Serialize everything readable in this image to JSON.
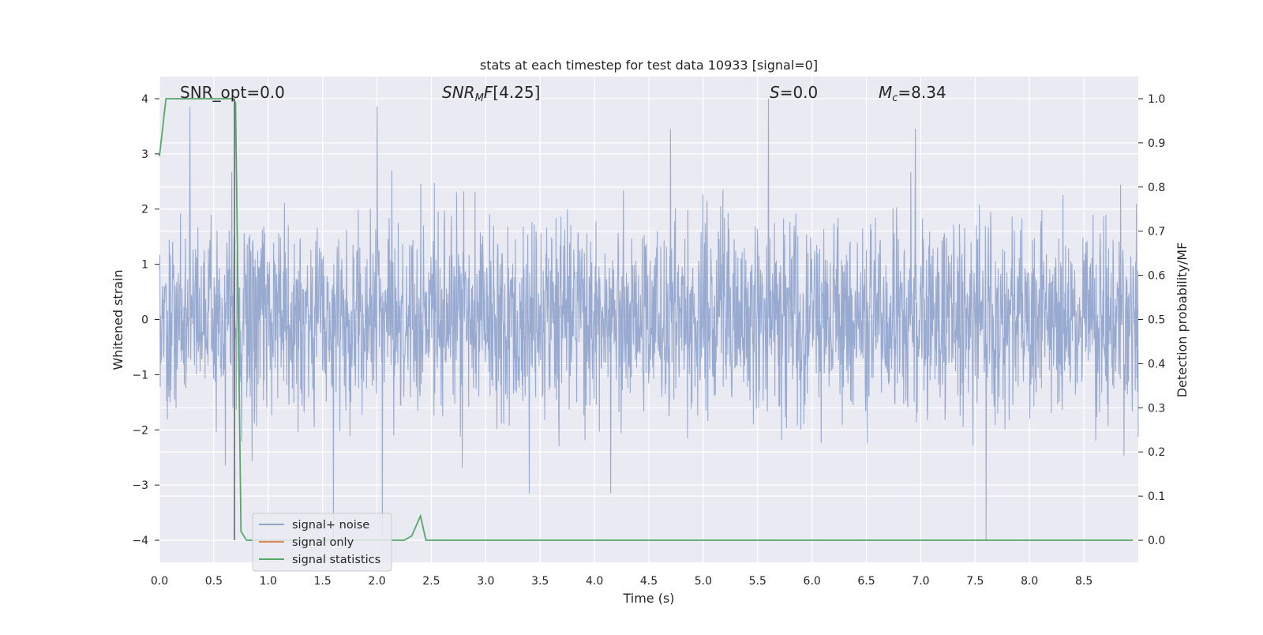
{
  "chart_data": {
    "type": "line",
    "title": "stats at each timestep for test data 10933 [signal=0]",
    "xlabel": "Time (s)",
    "ylabel_left": "Whitened strain",
    "ylabel_right": "Detection probability/MF",
    "xlim": [
      0,
      9.0
    ],
    "ylim_left": [
      -4.4,
      4.4
    ],
    "ylim_right": [
      -0.05,
      1.05
    ],
    "x_ticks": [
      "0.0",
      "0.5",
      "1.0",
      "1.5",
      "2.0",
      "2.5",
      "3.0",
      "3.5",
      "4.0",
      "4.5",
      "5.0",
      "5.5",
      "6.0",
      "6.5",
      "7.0",
      "7.5",
      "8.0",
      "8.5"
    ],
    "y_ticks_left": [
      "−4",
      "−3",
      "−2",
      "−1",
      "0",
      "1",
      "2",
      "3",
      "4"
    ],
    "y_ticks_right": [
      "0.0",
      "0.1",
      "0.2",
      "0.3",
      "0.4",
      "0.5",
      "0.6",
      "0.7",
      "0.8",
      "0.9",
      "1.0"
    ],
    "grid": true,
    "legend_position": "lower-left",
    "annotations": [
      {
        "id": "snr_opt",
        "text": "SNR_opt=0.0"
      },
      {
        "id": "snr_mf",
        "text": "[4.25]"
      },
      {
        "id": "s",
        "text": "=0.0"
      },
      {
        "id": "mc",
        "text": "=8.34"
      }
    ],
    "marker_line": {
      "x": 0.69,
      "y_range": [
        -4,
        4
      ]
    },
    "series": [
      {
        "name": "signal+ noise",
        "axis": "left",
        "color": "#8fa3cc",
        "description_range": [
          -4.0,
          4.0
        ],
        "envelope_hint": {
          "typical_max": 2.6,
          "typical_min": -2.6
        },
        "notable_peaks": [
          {
            "x": 0.28,
            "y": 3.85
          },
          {
            "x": 2.0,
            "y": 3.85
          },
          {
            "x": 5.6,
            "y": 4.0
          },
          {
            "x": 4.7,
            "y": 3.45
          },
          {
            "x": 6.95,
            "y": 3.45
          },
          {
            "x": 1.6,
            "y": -3.95
          },
          {
            "x": 2.05,
            "y": -3.9
          },
          {
            "x": 7.6,
            "y": -4.0
          },
          {
            "x": 3.4,
            "y": -3.15
          },
          {
            "x": 4.15,
            "y": -3.15
          }
        ]
      },
      {
        "name": "signal only",
        "axis": "left",
        "color": "#dd8452",
        "x": [
          0,
          9.0
        ],
        "y": [
          0,
          0
        ]
      },
      {
        "name": "signal statistics",
        "axis": "right",
        "color": "#55a868",
        "x": [
          0.0,
          0.06,
          0.1,
          0.2,
          0.5,
          0.6,
          0.68,
          0.7,
          0.72,
          0.75,
          0.8,
          0.9,
          1.5,
          2.0,
          2.25,
          2.32,
          2.4,
          2.45,
          2.6,
          3.5,
          5.0,
          6.5,
          8.0,
          8.95
        ],
        "y": [
          0.87,
          1.0,
          1.0,
          1.0,
          1.0,
          1.0,
          1.0,
          0.99,
          0.6,
          0.02,
          0.0,
          0.0,
          0.0,
          0.0,
          0.0,
          0.01,
          0.055,
          0.0,
          0.0,
          0.0,
          0.0,
          0.0,
          0.0,
          0.0
        ]
      }
    ]
  }
}
